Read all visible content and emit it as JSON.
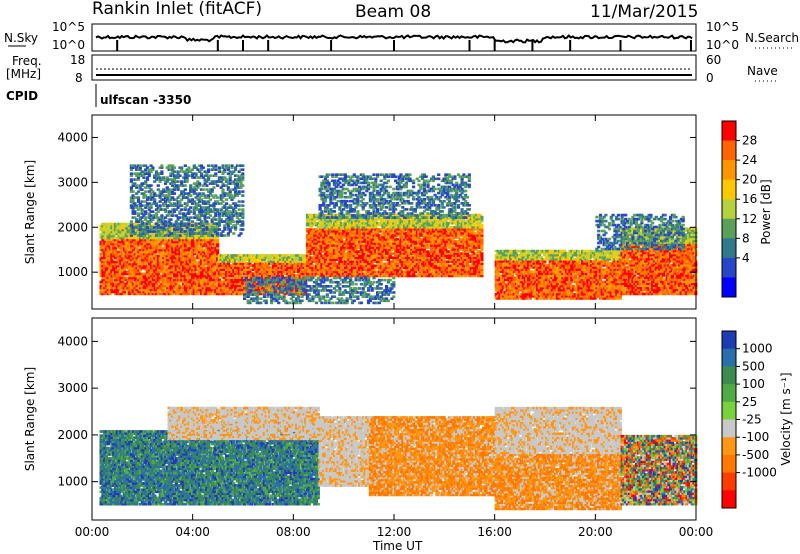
{
  "header": {
    "site": "Rankin Inlet (fitACF)",
    "beam": "Beam 08",
    "date": "11/Mar/2015"
  },
  "top_panel": {
    "left_label": "N.Sky",
    "right_label": "N.Search",
    "left_ticks": [
      "10^5",
      "10^0"
    ],
    "right_ticks": [
      "10^5",
      "10^0"
    ]
  },
  "freq_panel": {
    "label_line1": "Freq.",
    "label_line2": "[MHz]",
    "right_label": "Nave",
    "left_ticks": [
      "18",
      "8"
    ],
    "right_ticks": [
      "60",
      "0"
    ]
  },
  "cpid": {
    "label": "CPID",
    "value": "ulfscan -3350"
  },
  "chart_data": [
    {
      "type": "heatmap",
      "name": "power",
      "ylabel": "Slant Range [km]",
      "ylim": [
        180,
        4500
      ],
      "yticks": [
        1000,
        2000,
        3000,
        4000
      ],
      "xlim": [
        0,
        24
      ],
      "colorbar": {
        "label": "Power [dB]",
        "ticks": [
          "28",
          "24",
          "20",
          "16",
          "12",
          "8",
          "4"
        ],
        "colors": [
          "#ff0000",
          "#ff6400",
          "#ff9600",
          "#ffc800",
          "#b4d23c",
          "#5aa05a",
          "#32788c",
          "#2846c8",
          "#0000ff"
        ]
      },
      "echo_bands": [
        {
          "t0": 0.3,
          "t1": 5.0,
          "r0": 500,
          "r1": 2100,
          "level": "high"
        },
        {
          "t0": 5.0,
          "t1": 8.5,
          "r0": 500,
          "r1": 1400,
          "level": "high"
        },
        {
          "t0": 8.5,
          "t1": 15.5,
          "r0": 900,
          "r1": 2300,
          "level": "high"
        },
        {
          "t0": 16.0,
          "t1": 21.0,
          "r0": 400,
          "r1": 1500,
          "level": "high"
        },
        {
          "t0": 21.0,
          "t1": 24.0,
          "r0": 500,
          "r1": 2000,
          "level": "high"
        },
        {
          "t0": 1.5,
          "t1": 6.0,
          "r0": 1800,
          "r1": 3400,
          "level": "low"
        },
        {
          "t0": 6.0,
          "t1": 12.0,
          "r0": 300,
          "r1": 900,
          "level": "low"
        },
        {
          "t0": 9.0,
          "t1": 15.0,
          "r0": 2200,
          "r1": 3200,
          "level": "low"
        },
        {
          "t0": 20.0,
          "t1": 23.5,
          "r0": 1500,
          "r1": 2300,
          "level": "low"
        }
      ]
    },
    {
      "type": "heatmap",
      "name": "velocity",
      "ylabel": "Slant Range [km]",
      "ylim": [
        180,
        4500
      ],
      "yticks": [
        1000,
        2000,
        3000,
        4000
      ],
      "xlim": [
        0,
        24
      ],
      "xticks": [
        "00:00",
        "04:00",
        "08:00",
        "12:00",
        "16:00",
        "20:00",
        "00:00"
      ],
      "xlabel": "Time UT",
      "colorbar": {
        "label": "Velocity [m s⁻¹]",
        "ticks": [
          "1000",
          "500",
          "100",
          "25",
          "-25",
          "-100",
          "-500",
          "-1000"
        ],
        "colors": [
          "#1e3cb4",
          "#2a6eaa",
          "#3c8c50",
          "#50aa46",
          "#78d23c",
          "#c8c8c8",
          "#ff9614",
          "#ff7800",
          "#ff3c00",
          "#ff0000"
        ]
      },
      "echo_bands": [
        {
          "t0": 0.3,
          "t1": 5.0,
          "r0": 500,
          "r1": 2100,
          "level": "blue"
        },
        {
          "t0": 5.0,
          "t1": 9.0,
          "r0": 500,
          "r1": 2300,
          "level": "blue"
        },
        {
          "t0": 3.0,
          "t1": 9.0,
          "r0": 1900,
          "r1": 2600,
          "level": "gray"
        },
        {
          "t0": 9.0,
          "t1": 12.0,
          "r0": 900,
          "r1": 2400,
          "level": "gray"
        },
        {
          "t0": 11.0,
          "t1": 16.0,
          "r0": 700,
          "r1": 2400,
          "level": "orange"
        },
        {
          "t0": 16.0,
          "t1": 21.0,
          "r0": 400,
          "r1": 1600,
          "level": "orange"
        },
        {
          "t0": 16.0,
          "t1": 21.0,
          "r0": 1600,
          "r1": 2600,
          "level": "gray"
        },
        {
          "t0": 21.0,
          "t1": 24.0,
          "r0": 500,
          "r1": 2000,
          "level": "mixed"
        }
      ]
    }
  ]
}
